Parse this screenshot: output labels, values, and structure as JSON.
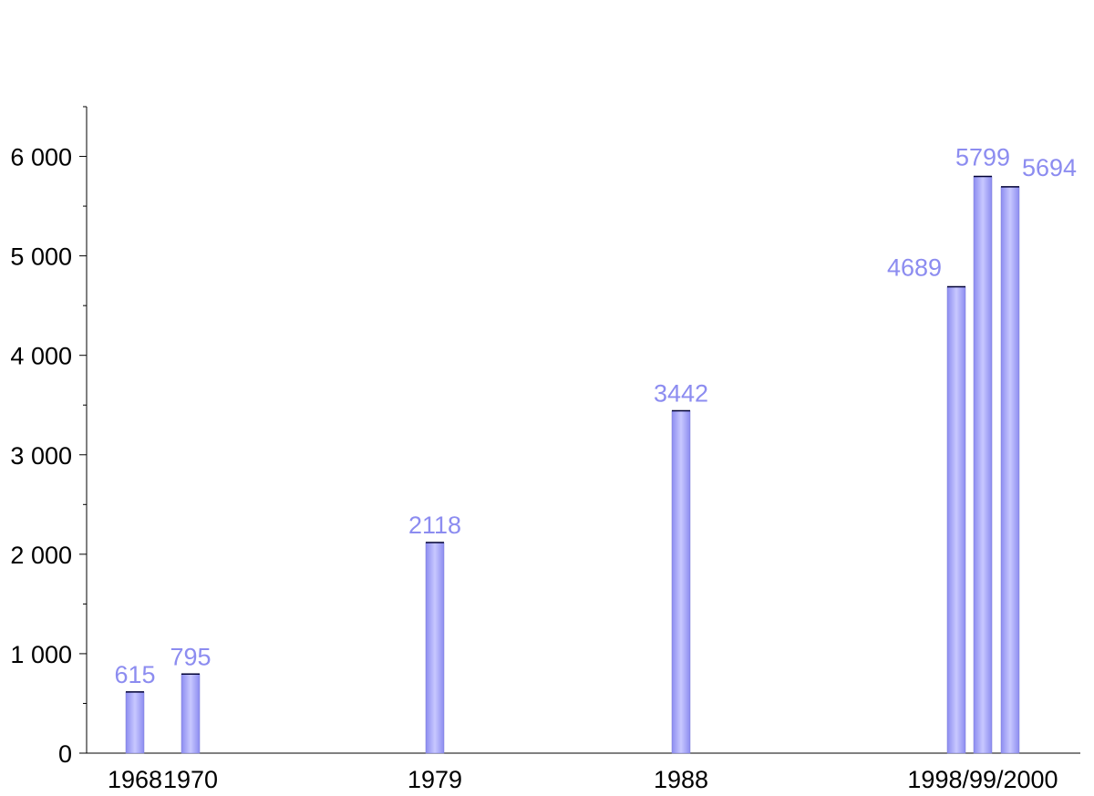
{
  "chart_data": {
    "type": "bar",
    "title": "",
    "xlabel": "",
    "ylabel": "",
    "ylim": [
      0,
      6500
    ],
    "y_ticks": [
      0,
      1000,
      2000,
      3000,
      4000,
      5000,
      6000
    ],
    "y_tick_labels": [
      "0",
      "1 000",
      "2 000",
      "3 000",
      "4 000",
      "5 000",
      "6 000"
    ],
    "y_minor_step": 500,
    "grid": false,
    "x": [
      1968,
      1970,
      1979,
      1988,
      1998,
      1999,
      2000
    ],
    "values": [
      615,
      795,
      2118,
      3442,
      4689,
      5799,
      5694
    ],
    "data_labels": [
      "615",
      "795",
      "2118",
      "3442",
      "4689",
      "5799",
      "5694"
    ],
    "x_tick_labels": [
      {
        "x": 1968,
        "label": "1968"
      },
      {
        "x": 1970,
        "label": "1970"
      },
      {
        "x": 1979,
        "label": "1979"
      },
      {
        "x": 1988,
        "label": "1988"
      },
      {
        "x": 1999,
        "label": "1998/99/2000"
      }
    ],
    "colors": {
      "bar_light": "#c8c8ff",
      "bar_dark": "#8c8cf0",
      "bar_top": "#000033",
      "data_label": "#8c8cf0",
      "axis": "#000000"
    }
  }
}
